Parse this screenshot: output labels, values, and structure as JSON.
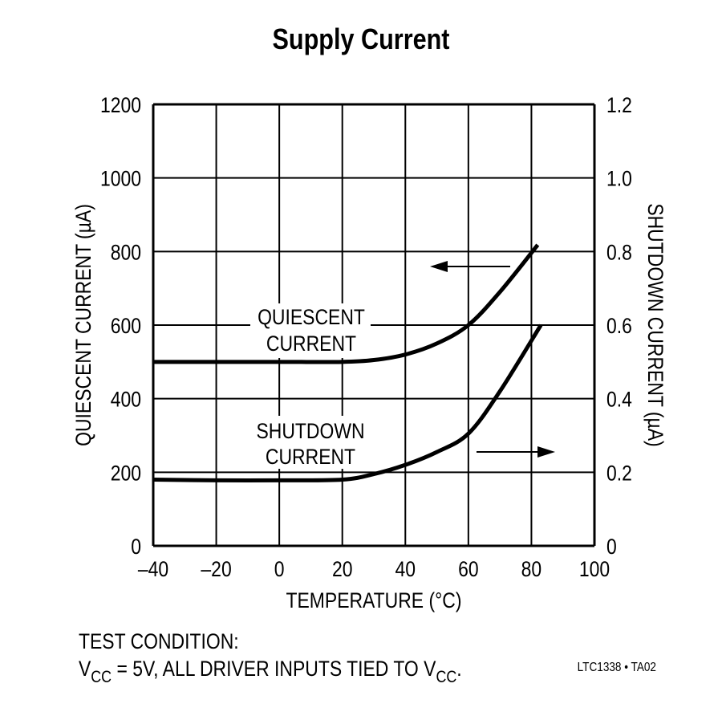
{
  "chart_data": {
    "type": "line",
    "title": "Supply Current",
    "xlabel": "TEMPERATURE (°C)",
    "ylabel": "QUIESCENT CURRENT (µA)",
    "y2label": "SHUTDOWN CURRENT (µA)",
    "xlim": [
      -40,
      100
    ],
    "ylim": [
      0,
      1200
    ],
    "y2lim": [
      0,
      1.2
    ],
    "x_ticks": [
      "–40",
      "–20",
      "0",
      "20",
      "40",
      "60",
      "80",
      "100"
    ],
    "y_ticks": [
      "0",
      "200",
      "400",
      "600",
      "800",
      "1000",
      "1200"
    ],
    "y2_ticks": [
      "0",
      "0.2",
      "0.4",
      "0.6",
      "0.8",
      "1.0",
      "1.2"
    ],
    "grid": true,
    "series": [
      {
        "name": "QUIESCENT CURRENT",
        "axis": "left",
        "x": [
          -40,
          -20,
          0,
          20,
          30,
          40,
          50,
          60,
          70,
          82
        ],
        "y": [
          500,
          500,
          500,
          500,
          505,
          520,
          550,
          600,
          690,
          818
        ]
      },
      {
        "name": "SHUTDOWN CURRENT",
        "axis": "right",
        "x": [
          -40,
          -20,
          0,
          20,
          30,
          40,
          50,
          60,
          70,
          83
        ],
        "y": [
          0.18,
          0.178,
          0.178,
          0.18,
          0.195,
          0.22,
          0.255,
          0.305,
          0.42,
          0.6
        ]
      }
    ],
    "annotations": [
      "QUIESCENT CURRENT",
      "SHUTDOWN CURRENT",
      "arrow-left (quiescent → left axis)",
      "arrow-right (shutdown → right axis)"
    ]
  },
  "labels": {
    "title": "Supply Current",
    "quiescent_1": "QUIESCENT",
    "quiescent_2": "CURRENT",
    "shutdown_1": "SHUTDOWN",
    "shutdown_2": "CURRENT",
    "test_condition": "TEST CONDITION:",
    "vcc_line": "V",
    "figure_id": "LTC1338 • TA02"
  }
}
